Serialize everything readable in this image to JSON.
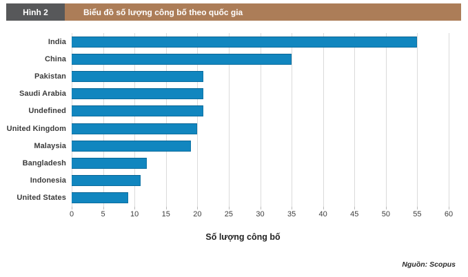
{
  "figure": {
    "label": "Hình 2",
    "title": "Biểu đồ số lượng công bố theo quốc gia",
    "source": "Nguồn: Scopus",
    "colors": {
      "label_bg": "#57585A",
      "title_bg": "#AC7D58",
      "bar": "#1186BF",
      "gridline": "#DADADA"
    }
  },
  "chart_data": {
    "type": "bar",
    "orientation": "horizontal",
    "title": "Biểu đồ số lượng công bố theo quốc gia",
    "categories": [
      "India",
      "China",
      "Pakistan",
      "Saudi Arabia",
      "Undefined",
      "United Kingdom",
      "Malaysia",
      "Bangladesh",
      "Indonesia",
      "United States"
    ],
    "values": [
      55,
      35,
      21,
      21,
      21,
      20,
      19,
      12,
      11,
      9
    ],
    "xlabel": "Số lượng công bố",
    "ylabel": "",
    "xlim": [
      0,
      60
    ],
    "xticks": [
      0,
      5,
      10,
      15,
      20,
      25,
      30,
      35,
      40,
      45,
      50,
      55,
      60
    ],
    "grid": "vertical",
    "legend": "none"
  }
}
